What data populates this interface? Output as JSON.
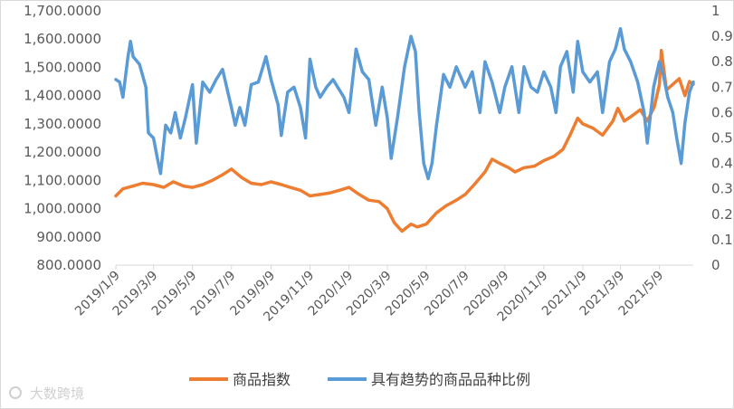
{
  "chart_data": {
    "type": "line",
    "y_left": {
      "ylim": [
        800,
        1700
      ],
      "ticks": [
        "800.0000",
        "900.0000",
        "1,000.0000",
        "1,100.0000",
        "1,200.0000",
        "1,300.0000",
        "1,400.0000",
        "1,500.0000",
        "1,600.0000",
        "1,700.0000"
      ]
    },
    "y_right": {
      "ylim": [
        0,
        1
      ],
      "ticks": [
        "0",
        "0.1",
        "0.2",
        "0.3",
        "0.4",
        "0.5",
        "0.6",
        "0.7",
        "0.8",
        "0.9",
        "1"
      ]
    },
    "x_ticks": [
      "2019/1/9",
      "2019/3/9",
      "2019/5/9",
      "2019/7/9",
      "2019/9/9",
      "2019/11/9",
      "2020/1/9",
      "2020/3/9",
      "2020/5/9",
      "2020/7/9",
      "2020/9/9",
      "2020/11/9",
      "2021/1/9",
      "2021/3/9",
      "2021/5/9"
    ],
    "x_range": [
      "2019-01-09",
      "2021-07-01"
    ],
    "series": [
      {
        "name": "商品指数",
        "axis": "left",
        "color": "#ED7D31",
        "points": [
          [
            "2019-01-09",
            1045
          ],
          [
            "2019-01-20",
            1070
          ],
          [
            "2019-02-05",
            1080
          ],
          [
            "2019-02-20",
            1090
          ],
          [
            "2019-03-09",
            1085
          ],
          [
            "2019-03-25",
            1075
          ],
          [
            "2019-04-09",
            1095
          ],
          [
            "2019-04-25",
            1080
          ],
          [
            "2019-05-09",
            1075
          ],
          [
            "2019-05-25",
            1085
          ],
          [
            "2019-06-09",
            1100
          ],
          [
            "2019-06-25",
            1120
          ],
          [
            "2019-07-09",
            1140
          ],
          [
            "2019-07-25",
            1110
          ],
          [
            "2019-08-09",
            1090
          ],
          [
            "2019-08-25",
            1085
          ],
          [
            "2019-09-09",
            1095
          ],
          [
            "2019-09-25",
            1085
          ],
          [
            "2019-10-09",
            1075
          ],
          [
            "2019-10-25",
            1065
          ],
          [
            "2019-11-09",
            1045
          ],
          [
            "2019-11-25",
            1050
          ],
          [
            "2019-12-09",
            1055
          ],
          [
            "2019-12-25",
            1065
          ],
          [
            "2020-01-09",
            1075
          ],
          [
            "2020-01-25",
            1050
          ],
          [
            "2020-02-09",
            1030
          ],
          [
            "2020-02-25",
            1025
          ],
          [
            "2020-03-09",
            1000
          ],
          [
            "2020-03-20",
            950
          ],
          [
            "2020-04-01",
            920
          ],
          [
            "2020-04-15",
            945
          ],
          [
            "2020-04-25",
            935
          ],
          [
            "2020-05-09",
            945
          ],
          [
            "2020-05-25",
            985
          ],
          [
            "2020-06-09",
            1010
          ],
          [
            "2020-06-25",
            1030
          ],
          [
            "2020-07-09",
            1050
          ],
          [
            "2020-07-25",
            1090
          ],
          [
            "2020-08-09",
            1130
          ],
          [
            "2020-08-20",
            1175
          ],
          [
            "2020-09-01",
            1160
          ],
          [
            "2020-09-15",
            1145
          ],
          [
            "2020-09-25",
            1130
          ],
          [
            "2020-10-09",
            1145
          ],
          [
            "2020-10-25",
            1150
          ],
          [
            "2020-11-09",
            1170
          ],
          [
            "2020-11-25",
            1185
          ],
          [
            "2020-12-09",
            1210
          ],
          [
            "2020-12-20",
            1260
          ],
          [
            "2021-01-01",
            1320
          ],
          [
            "2021-01-09",
            1300
          ],
          [
            "2021-01-25",
            1285
          ],
          [
            "2021-02-09",
            1260
          ],
          [
            "2021-02-25",
            1310
          ],
          [
            "2021-03-05",
            1355
          ],
          [
            "2021-03-15",
            1310
          ],
          [
            "2021-03-25",
            1325
          ],
          [
            "2021-04-09",
            1350
          ],
          [
            "2021-04-20",
            1310
          ],
          [
            "2021-05-01",
            1360
          ],
          [
            "2021-05-09",
            1440
          ],
          [
            "2021-05-12",
            1560
          ],
          [
            "2021-05-20",
            1420
          ],
          [
            "2021-05-30",
            1440
          ],
          [
            "2021-06-09",
            1460
          ],
          [
            "2021-06-18",
            1400
          ],
          [
            "2021-06-25",
            1450
          ],
          [
            "2021-07-01",
            1440
          ]
        ]
      },
      {
        "name": "具有趋势的商品品种比例",
        "axis": "right",
        "color": "#5B9BD5",
        "points": [
          [
            "2019-01-09",
            0.73
          ],
          [
            "2019-01-15",
            0.72
          ],
          [
            "2019-01-20",
            0.66
          ],
          [
            "2019-01-28",
            0.82
          ],
          [
            "2019-02-01",
            0.88
          ],
          [
            "2019-02-05",
            0.82
          ],
          [
            "2019-02-15",
            0.79
          ],
          [
            "2019-02-25",
            0.7
          ],
          [
            "2019-03-01",
            0.52
          ],
          [
            "2019-03-09",
            0.5
          ],
          [
            "2019-03-15",
            0.42
          ],
          [
            "2019-03-20",
            0.36
          ],
          [
            "2019-03-28",
            0.55
          ],
          [
            "2019-04-05",
            0.52
          ],
          [
            "2019-04-12",
            0.6
          ],
          [
            "2019-04-20",
            0.5
          ],
          [
            "2019-04-28",
            0.58
          ],
          [
            "2019-05-09",
            0.71
          ],
          [
            "2019-05-15",
            0.48
          ],
          [
            "2019-05-25",
            0.72
          ],
          [
            "2019-06-05",
            0.68
          ],
          [
            "2019-06-15",
            0.73
          ],
          [
            "2019-06-25",
            0.77
          ],
          [
            "2019-07-09",
            0.62
          ],
          [
            "2019-07-15",
            0.55
          ],
          [
            "2019-07-22",
            0.62
          ],
          [
            "2019-07-30",
            0.55
          ],
          [
            "2019-08-09",
            0.71
          ],
          [
            "2019-08-20",
            0.72
          ],
          [
            "2019-09-01",
            0.82
          ],
          [
            "2019-09-09",
            0.73
          ],
          [
            "2019-09-20",
            0.63
          ],
          [
            "2019-09-25",
            0.51
          ],
          [
            "2019-10-05",
            0.68
          ],
          [
            "2019-10-15",
            0.7
          ],
          [
            "2019-10-25",
            0.62
          ],
          [
            "2019-11-02",
            0.5
          ],
          [
            "2019-11-09",
            0.81
          ],
          [
            "2019-11-18",
            0.7
          ],
          [
            "2019-11-25",
            0.66
          ],
          [
            "2019-12-05",
            0.7
          ],
          [
            "2019-12-15",
            0.73
          ],
          [
            "2020-01-01",
            0.66
          ],
          [
            "2020-01-09",
            0.6
          ],
          [
            "2020-01-20",
            0.85
          ],
          [
            "2020-01-30",
            0.76
          ],
          [
            "2020-02-09",
            0.73
          ],
          [
            "2020-02-20",
            0.55
          ],
          [
            "2020-03-01",
            0.7
          ],
          [
            "2020-03-09",
            0.58
          ],
          [
            "2020-03-15",
            0.42
          ],
          [
            "2020-03-25",
            0.58
          ],
          [
            "2020-04-05",
            0.78
          ],
          [
            "2020-04-15",
            0.9
          ],
          [
            "2020-04-22",
            0.84
          ],
          [
            "2020-04-28",
            0.6
          ],
          [
            "2020-05-05",
            0.4
          ],
          [
            "2020-05-12",
            0.34
          ],
          [
            "2020-05-18",
            0.4
          ],
          [
            "2020-05-25",
            0.55
          ],
          [
            "2020-06-05",
            0.75
          ],
          [
            "2020-06-15",
            0.7
          ],
          [
            "2020-06-25",
            0.78
          ],
          [
            "2020-07-09",
            0.7
          ],
          [
            "2020-07-20",
            0.76
          ],
          [
            "2020-08-01",
            0.6
          ],
          [
            "2020-08-09",
            0.8
          ],
          [
            "2020-08-20",
            0.72
          ],
          [
            "2020-09-01",
            0.6
          ],
          [
            "2020-09-09",
            0.7
          ],
          [
            "2020-09-20",
            0.78
          ],
          [
            "2020-10-01",
            0.6
          ],
          [
            "2020-10-09",
            0.78
          ],
          [
            "2020-10-20",
            0.7
          ],
          [
            "2020-10-30",
            0.68
          ],
          [
            "2020-11-09",
            0.76
          ],
          [
            "2020-11-20",
            0.7
          ],
          [
            "2020-11-28",
            0.6
          ],
          [
            "2020-12-05",
            0.78
          ],
          [
            "2020-12-15",
            0.84
          ],
          [
            "2020-12-25",
            0.68
          ],
          [
            "2021-01-01",
            0.88
          ],
          [
            "2021-01-09",
            0.76
          ],
          [
            "2021-01-20",
            0.72
          ],
          [
            "2021-02-01",
            0.76
          ],
          [
            "2021-02-09",
            0.6
          ],
          [
            "2021-02-20",
            0.8
          ],
          [
            "2021-03-01",
            0.85
          ],
          [
            "2021-03-09",
            0.93
          ],
          [
            "2021-03-15",
            0.85
          ],
          [
            "2021-03-25",
            0.8
          ],
          [
            "2021-04-05",
            0.72
          ],
          [
            "2021-04-15",
            0.6
          ],
          [
            "2021-04-20",
            0.48
          ],
          [
            "2021-04-30",
            0.7
          ],
          [
            "2021-05-09",
            0.8
          ],
          [
            "2021-05-15",
            0.75
          ],
          [
            "2021-05-22",
            0.66
          ],
          [
            "2021-05-30",
            0.6
          ],
          [
            "2021-06-05",
            0.5
          ],
          [
            "2021-06-12",
            0.4
          ],
          [
            "2021-06-18",
            0.56
          ],
          [
            "2021-06-25",
            0.68
          ],
          [
            "2021-07-01",
            0.72
          ]
        ]
      }
    ],
    "legend_position": "bottom",
    "grid": false
  },
  "watermark": {
    "text": "大数跨境"
  }
}
